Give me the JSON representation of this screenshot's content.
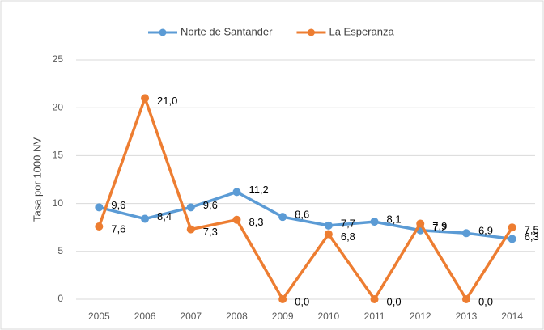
{
  "chart_data": {
    "type": "line",
    "y_label": "Tasa por 1000 NV",
    "categories": [
      "2005",
      "2006",
      "2007",
      "2008",
      "2009",
      "2010",
      "2011",
      "2012",
      "2013",
      "2014"
    ],
    "series": [
      {
        "name": "Norte de Santander",
        "color": "#5b9bd5",
        "values": [
          9.6,
          8.4,
          9.6,
          11.2,
          8.6,
          7.7,
          8.1,
          7.2,
          6.9,
          6.3
        ],
        "value_labels": [
          "9,6",
          "8,4",
          "9,6",
          "11,2",
          "8,6",
          "7,7",
          "8,1",
          "7,2",
          "6,9",
          "6,3"
        ]
      },
      {
        "name": "La Esperanza",
        "color": "#ed7d31",
        "values": [
          7.6,
          21.0,
          7.3,
          8.3,
          0.0,
          6.8,
          0.0,
          7.9,
          0.0,
          7.5
        ],
        "value_labels": [
          "7,6",
          "21,0",
          "7,3",
          "8,3",
          "0,0",
          "6,8",
          "0,0",
          "7,9",
          "0,0",
          "7,5"
        ]
      }
    ],
    "ylim": [
      0,
      25
    ],
    "yticks": [
      0,
      5,
      10,
      15,
      20,
      25
    ],
    "grid": true,
    "legend": "top"
  }
}
